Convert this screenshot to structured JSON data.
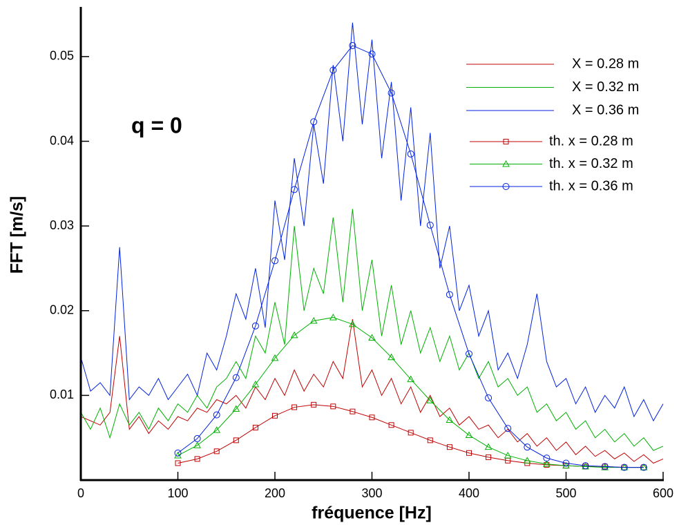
{
  "chart_data": {
    "type": "line",
    "annotation": "q = 0",
    "x_label": "fréquence [Hz]",
    "y_label": "FFT [m/s]",
    "xlim": [
      0,
      600
    ],
    "ylim": [
      0,
      0.0557
    ],
    "xticks": [
      0,
      100,
      200,
      300,
      400,
      500,
      600
    ],
    "yticks": [
      0.01,
      0.02,
      0.03,
      0.04,
      0.05
    ],
    "series": [
      {
        "name": "X = 0.28 m",
        "color": "#c00000",
        "x": [
          0,
          10,
          20,
          30,
          40,
          50,
          60,
          70,
          80,
          90,
          100,
          110,
          120,
          130,
          140,
          150,
          160,
          170,
          180,
          190,
          200,
          210,
          220,
          230,
          240,
          250,
          260,
          270,
          280,
          290,
          300,
          310,
          320,
          330,
          340,
          350,
          360,
          370,
          380,
          390,
          400,
          410,
          420,
          430,
          440,
          450,
          460,
          470,
          480,
          490,
          500,
          510,
          520,
          530,
          540,
          550,
          560,
          570,
          580,
          590,
          600
        ],
        "values": [
          0.0075,
          0.007,
          0.0065,
          0.008,
          0.017,
          0.006,
          0.0075,
          0.0055,
          0.007,
          0.006,
          0.0075,
          0.007,
          0.0085,
          0.008,
          0.0095,
          0.009,
          0.01,
          0.0085,
          0.011,
          0.0095,
          0.012,
          0.01,
          0.013,
          0.0105,
          0.0125,
          0.011,
          0.014,
          0.012,
          0.019,
          0.011,
          0.013,
          0.01,
          0.012,
          0.009,
          0.011,
          0.008,
          0.01,
          0.0075,
          0.0085,
          0.0065,
          0.0075,
          0.006,
          0.0065,
          0.005,
          0.006,
          0.0045,
          0.0055,
          0.004,
          0.005,
          0.0035,
          0.0045,
          0.003,
          0.004,
          0.0028,
          0.0035,
          0.0025,
          0.0032,
          0.0022,
          0.003,
          0.002,
          0.0025
        ]
      },
      {
        "name": "X = 0.32 m",
        "color": "#00b000",
        "x": [
          0,
          10,
          20,
          30,
          40,
          50,
          60,
          70,
          80,
          90,
          100,
          110,
          120,
          130,
          140,
          150,
          160,
          170,
          180,
          190,
          200,
          210,
          220,
          230,
          240,
          250,
          260,
          270,
          280,
          290,
          300,
          310,
          320,
          330,
          340,
          350,
          360,
          370,
          380,
          390,
          400,
          410,
          420,
          430,
          440,
          450,
          460,
          470,
          480,
          490,
          500,
          510,
          520,
          530,
          540,
          550,
          560,
          570,
          580,
          590,
          600
        ],
        "values": [
          0.008,
          0.006,
          0.0085,
          0.005,
          0.009,
          0.0065,
          0.008,
          0.006,
          0.0085,
          0.007,
          0.009,
          0.008,
          0.01,
          0.0085,
          0.011,
          0.012,
          0.014,
          0.012,
          0.017,
          0.015,
          0.021,
          0.016,
          0.03,
          0.02,
          0.025,
          0.022,
          0.031,
          0.021,
          0.032,
          0.02,
          0.026,
          0.017,
          0.023,
          0.016,
          0.02,
          0.015,
          0.018,
          0.014,
          0.017,
          0.013,
          0.015,
          0.012,
          0.014,
          0.011,
          0.012,
          0.01,
          0.011,
          0.008,
          0.009,
          0.007,
          0.008,
          0.006,
          0.007,
          0.005,
          0.006,
          0.0045,
          0.0055,
          0.004,
          0.005,
          0.0035,
          0.004
        ]
      },
      {
        "name": "X = 0.36 m",
        "color": "#0020e0",
        "x": [
          0,
          10,
          20,
          30,
          40,
          50,
          60,
          70,
          80,
          90,
          100,
          110,
          120,
          130,
          140,
          150,
          160,
          170,
          180,
          190,
          200,
          210,
          220,
          230,
          240,
          250,
          260,
          270,
          280,
          290,
          300,
          310,
          320,
          330,
          340,
          350,
          360,
          370,
          380,
          390,
          400,
          410,
          420,
          430,
          440,
          450,
          460,
          470,
          480,
          490,
          500,
          510,
          520,
          530,
          540,
          550,
          560,
          570,
          580,
          590,
          600
        ],
        "values": [
          0.0145,
          0.0105,
          0.0115,
          0.01,
          0.0275,
          0.0095,
          0.011,
          0.01,
          0.012,
          0.0095,
          0.011,
          0.0125,
          0.01,
          0.015,
          0.013,
          0.017,
          0.022,
          0.019,
          0.025,
          0.018,
          0.033,
          0.026,
          0.038,
          0.03,
          0.042,
          0.035,
          0.049,
          0.04,
          0.054,
          0.042,
          0.052,
          0.038,
          0.047,
          0.033,
          0.044,
          0.03,
          0.041,
          0.025,
          0.03,
          0.02,
          0.023,
          0.017,
          0.02,
          0.013,
          0.015,
          0.012,
          0.016,
          0.022,
          0.014,
          0.011,
          0.012,
          0.009,
          0.011,
          0.008,
          0.01,
          0.0085,
          0.011,
          0.0075,
          0.0095,
          0.007,
          0.009
        ]
      },
      {
        "name": "th. x = 0.28 m",
        "color": "#c00000",
        "marker": "square",
        "x": [
          100,
          120,
          140,
          160,
          180,
          200,
          220,
          240,
          260,
          280,
          300,
          320,
          340,
          360,
          380,
          400,
          420,
          440,
          460,
          480,
          500,
          520,
          540,
          560,
          580
        ],
        "values": [
          0.002,
          0.0025,
          0.0034,
          0.0047,
          0.0062,
          0.0076,
          0.0086,
          0.0089,
          0.0087,
          0.0081,
          0.0074,
          0.0065,
          0.0056,
          0.0047,
          0.0039,
          0.0032,
          0.0027,
          0.0023,
          0.002,
          0.0018,
          0.0017,
          0.0016,
          0.0016,
          0.0015,
          0.0015
        ]
      },
      {
        "name": "th. x = 0.32 m",
        "color": "#00b000",
        "marker": "triangle",
        "x": [
          100,
          120,
          140,
          160,
          180,
          200,
          220,
          240,
          260,
          280,
          300,
          320,
          340,
          360,
          380,
          400,
          420,
          440,
          460,
          480,
          500,
          520,
          540,
          560,
          580
        ],
        "values": [
          0.0029,
          0.0041,
          0.0059,
          0.0084,
          0.0113,
          0.0144,
          0.0171,
          0.0188,
          0.0192,
          0.0184,
          0.0168,
          0.0145,
          0.0119,
          0.0094,
          0.0071,
          0.0053,
          0.0039,
          0.0029,
          0.0023,
          0.0019,
          0.0017,
          0.0016,
          0.0015,
          0.0015,
          0.0015
        ]
      },
      {
        "name": "th. x = 0.36 m",
        "color": "#0020e0",
        "marker": "circle",
        "x": [
          100,
          120,
          140,
          160,
          180,
          200,
          220,
          240,
          260,
          280,
          300,
          320,
          340,
          360,
          380,
          400,
          420,
          440,
          460,
          480,
          500,
          520,
          540,
          560,
          580
        ],
        "values": [
          0.0032,
          0.0049,
          0.0077,
          0.0121,
          0.0182,
          0.0259,
          0.0343,
          0.0423,
          0.0484,
          0.0513,
          0.0503,
          0.0457,
          0.0385,
          0.0301,
          0.0219,
          0.0149,
          0.0097,
          0.0061,
          0.0039,
          0.0026,
          0.002,
          0.0017,
          0.0016,
          0.0015,
          0.0015
        ]
      }
    ]
  }
}
